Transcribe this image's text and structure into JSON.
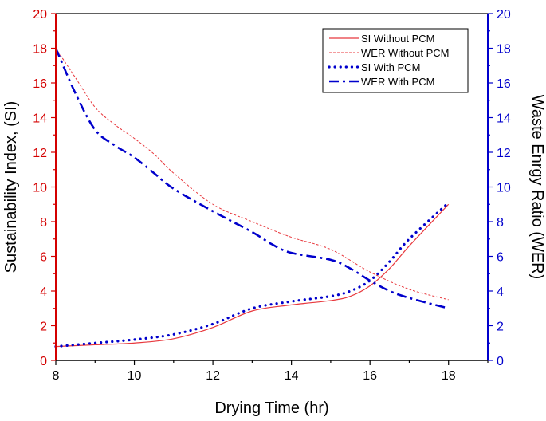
{
  "chart_data": {
    "type": "line",
    "title": "",
    "xlabel": "Drying Time (hr)",
    "ylabel_left": "Sustainability Index, (SI)",
    "ylabel_right": "Waste Enrgy Ratio (WER)",
    "xlim": [
      8,
      19
    ],
    "ylim_left": [
      0,
      20
    ],
    "ylim_right": [
      0,
      20
    ],
    "xticks": [
      8,
      10,
      12,
      14,
      16,
      18
    ],
    "yticks_left": [
      0,
      2,
      4,
      6,
      8,
      10,
      12,
      14,
      16,
      18,
      20
    ],
    "yticks_right": [
      0,
      2,
      4,
      6,
      8,
      10,
      12,
      14,
      16,
      18,
      20
    ],
    "left_axis_color": "#d40000",
    "right_axis_color": "#0000cc",
    "legend_position": "top-right",
    "series": [
      {
        "name": "SI Without PCM",
        "axis": "left",
        "color": "#e8383d",
        "style": "solid",
        "x": [
          8,
          9,
          10,
          11,
          12,
          13,
          14,
          15,
          15.5,
          16,
          16.5,
          17,
          18
        ],
        "y": [
          0.8,
          0.9,
          1.0,
          1.25,
          1.9,
          2.85,
          3.2,
          3.45,
          3.7,
          4.3,
          5.3,
          6.6,
          9.0
        ]
      },
      {
        "name": "WER Without PCM",
        "axis": "right",
        "color": "#e8383d",
        "style": "dashed",
        "x": [
          8,
          8.5,
          9,
          9.5,
          10,
          10.5,
          11,
          12,
          13,
          14,
          15,
          16,
          17,
          18
        ],
        "y": [
          18.0,
          16.3,
          14.6,
          13.6,
          12.8,
          11.9,
          10.8,
          9.0,
          8.0,
          7.1,
          6.4,
          5.1,
          4.1,
          3.5
        ]
      },
      {
        "name": "SI With PCM",
        "axis": "left",
        "color": "#0000cc",
        "style": "dotted",
        "x": [
          8,
          9,
          10,
          11,
          12,
          13,
          14,
          15,
          15.5,
          16,
          16.5,
          17,
          18
        ],
        "y": [
          0.8,
          1.0,
          1.2,
          1.5,
          2.1,
          3.0,
          3.4,
          3.7,
          4.0,
          4.6,
          5.7,
          7.0,
          9.1
        ]
      },
      {
        "name": "WER With PCM",
        "axis": "right",
        "color": "#0000cc",
        "style": "dashdot",
        "x": [
          8,
          8.5,
          9,
          9.5,
          10,
          10.5,
          11,
          12,
          13,
          13.5,
          14,
          15,
          15.5,
          16,
          16.5,
          17,
          18
        ],
        "y": [
          18.0,
          15.4,
          13.3,
          12.4,
          11.7,
          10.8,
          9.9,
          8.6,
          7.4,
          6.7,
          6.2,
          5.8,
          5.3,
          4.6,
          4.0,
          3.6,
          3.0
        ]
      }
    ]
  }
}
